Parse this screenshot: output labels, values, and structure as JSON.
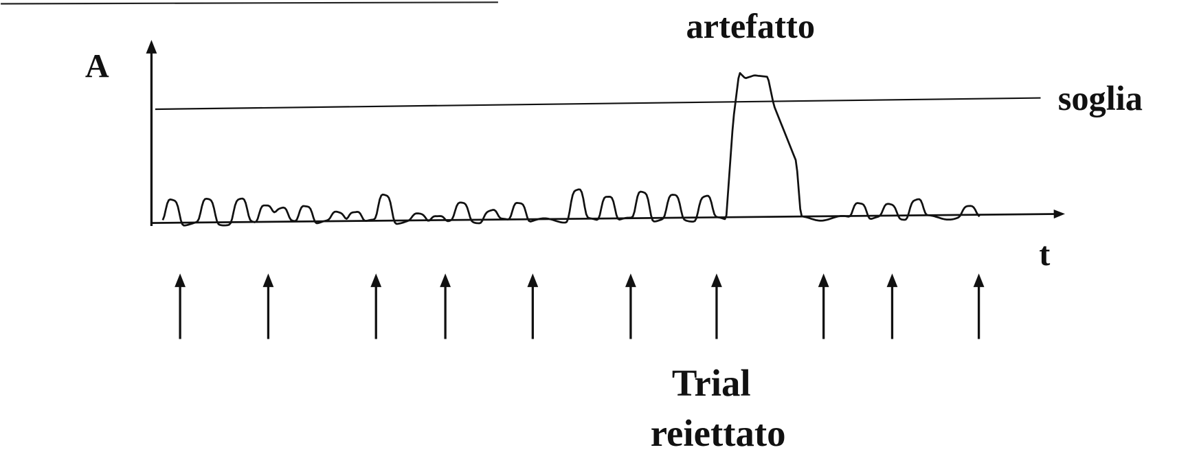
{
  "axes": {
    "y_label": "A",
    "x_label": "t"
  },
  "threshold_label": "soglia",
  "artifact_label": "artefatto",
  "rejected_trial": {
    "line1": "Trial",
    "line2": "reiettato"
  }
}
